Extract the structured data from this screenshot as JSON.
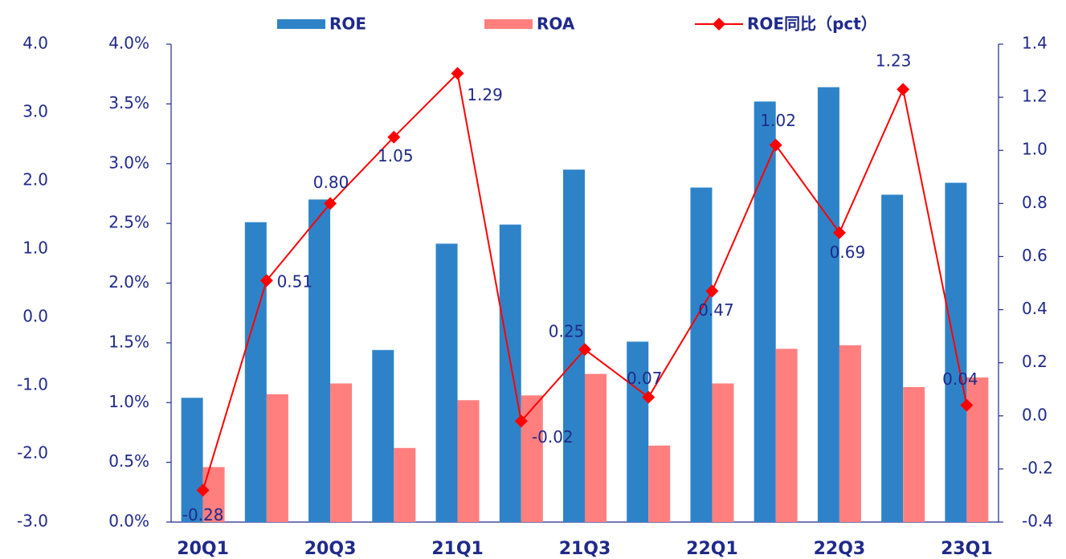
{
  "chart_data": {
    "type": "bar-line",
    "categories": [
      "20Q1",
      null,
      "20Q3",
      null,
      "21Q1",
      null,
      "21Q3",
      null,
      "22Q1",
      null,
      "22Q3",
      null,
      "23Q1"
    ],
    "series": [
      {
        "name": "ROE",
        "color": "#2e83c8",
        "type": "bar",
        "values": [
          1.04,
          2.51,
          2.7,
          1.44,
          2.33,
          2.49,
          2.95,
          1.51,
          2.8,
          3.52,
          3.64,
          2.74,
          2.84
        ]
      },
      {
        "name": "ROA",
        "color": "#ff7f7f",
        "type": "bar",
        "values": [
          0.46,
          1.07,
          1.16,
          0.62,
          1.02,
          1.06,
          1.24,
          0.64,
          1.16,
          1.45,
          1.48,
          1.13,
          1.21
        ]
      },
      {
        "name": "ROE同比（pct）",
        "color": "#ff0000",
        "type": "line",
        "axis": "y2",
        "values": [
          -0.28,
          0.51,
          0.8,
          1.05,
          1.29,
          -0.02,
          0.25,
          0.07,
          0.47,
          1.02,
          0.69,
          1.23,
          0.04
        ],
        "value_labels": [
          "-0.28",
          "0.51",
          "0.80",
          "1.05",
          "1.29",
          "-0.02",
          "0.25",
          "0.07",
          "0.47",
          "1.02",
          "0.69",
          "1.23",
          "0.04"
        ]
      }
    ],
    "ylim": [
      0,
      4
    ],
    "yticks": [
      {
        "value": 0,
        "label": "0.0%"
      },
      {
        "value": 0.5,
        "label": "0.5%"
      },
      {
        "value": 1,
        "label": "1.0%"
      },
      {
        "value": 1.5,
        "label": "1.5%"
      },
      {
        "value": 2,
        "label": "2.0%"
      },
      {
        "value": 2.5,
        "label": "2.5%"
      },
      {
        "value": 3,
        "label": "3.0%"
      },
      {
        "value": 3.5,
        "label": "3.5%"
      },
      {
        "value": 4,
        "label": "4.0%"
      }
    ],
    "y2lim": [
      -0.4,
      1.4
    ],
    "y2ticks": [
      -0.4,
      -0.2,
      {
        "value": 0,
        "label": "0.0"
      },
      0.2,
      0.4,
      0.6,
      0.8,
      {
        "value": 1,
        "label": "1.0"
      },
      1.2,
      1.4
    ],
    "y3lim": [
      -3,
      4
    ],
    "y3ticks": [
      {
        "value": -3,
        "label": "-3.0"
      },
      {
        "value": -2,
        "label": "-2.0"
      },
      {
        "value": -1,
        "label": "-1.0"
      },
      {
        "value": 0,
        "label": "0.0"
      },
      {
        "value": 1,
        "label": "1.0"
      },
      {
        "value": 2,
        "label": "2.0"
      },
      {
        "value": 3,
        "label": "3.0"
      },
      {
        "value": 4,
        "label": "4.0"
      }
    ]
  }
}
